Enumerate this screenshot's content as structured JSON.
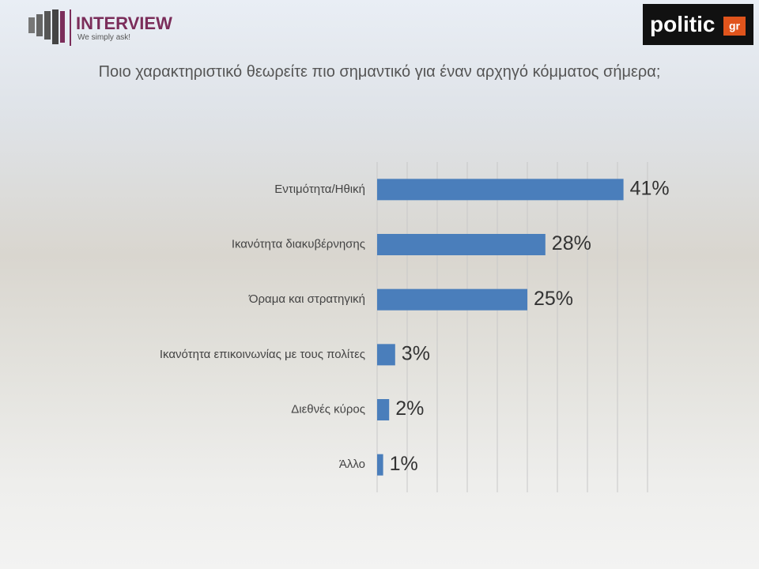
{
  "logos": {
    "brand": "INTERVIEW",
    "slogan": "We simply ask!",
    "outlet": "politic",
    "outlet_suffix": "gr"
  },
  "chart_data": {
    "type": "bar",
    "orientation": "horizontal",
    "title": "Ποιο χαρακτηριστικό θεωρείτε πιο σημαντικό για έναν αρχηγό κόμματος σήμερα;",
    "categories": [
      "Εντιμότητα/Ηθική",
      "Ικανότητα διακυβέρνησης",
      "Όραμα και στρατηγική",
      "Ικανότητα επικοινωνίας με τους πολίτες",
      "Διεθνές κύρος",
      "Άλλο"
    ],
    "values": [
      41,
      28,
      25,
      3,
      2,
      1
    ],
    "value_labels": [
      "41%",
      "28%",
      "25%",
      "3%",
      "2%",
      "1%"
    ],
    "color": "#4a7ebb",
    "xlim": [
      0,
      45
    ],
    "xticks": [
      0,
      5,
      10,
      15,
      20,
      25,
      30,
      35,
      40,
      45
    ],
    "grid": true
  }
}
